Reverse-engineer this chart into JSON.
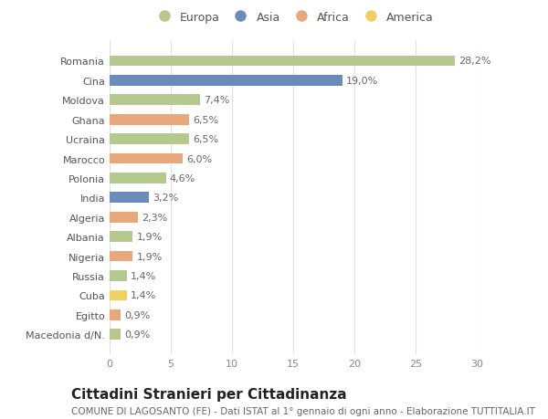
{
  "countries": [
    "Romania",
    "Cina",
    "Moldova",
    "Ghana",
    "Ucraina",
    "Marocco",
    "Polonia",
    "India",
    "Algeria",
    "Albania",
    "Nigeria",
    "Russia",
    "Cuba",
    "Egitto",
    "Macedonia d/N."
  ],
  "values": [
    28.2,
    19.0,
    7.4,
    6.5,
    6.5,
    6.0,
    4.6,
    3.2,
    2.3,
    1.9,
    1.9,
    1.4,
    1.4,
    0.9,
    0.9
  ],
  "labels": [
    "28,2%",
    "19,0%",
    "7,4%",
    "6,5%",
    "6,5%",
    "6,0%",
    "4,6%",
    "3,2%",
    "2,3%",
    "1,9%",
    "1,9%",
    "1,4%",
    "1,4%",
    "0,9%",
    "0,9%"
  ],
  "continents": [
    "Europa",
    "Asia",
    "Europa",
    "Africa",
    "Europa",
    "Africa",
    "Europa",
    "Asia",
    "Africa",
    "Europa",
    "Africa",
    "Europa",
    "America",
    "Africa",
    "Europa"
  ],
  "colors": {
    "Europa": "#b5c98e",
    "Asia": "#6b8cba",
    "Africa": "#e8a87c",
    "America": "#f0d060"
  },
  "legend_order": [
    "Europa",
    "Asia",
    "Africa",
    "America"
  ],
  "xlim": [
    0,
    30
  ],
  "xticks": [
    0,
    5,
    10,
    15,
    20,
    25,
    30
  ],
  "title": "Cittadini Stranieri per Cittadinanza",
  "subtitle": "COMUNE DI LAGOSANTO (FE) - Dati ISTAT al 1° gennaio di ogni anno - Elaborazione TUTTITALIA.IT",
  "bg_color": "#ffffff",
  "plot_bg_color": "#ffffff",
  "grid_color": "#e0e0e0",
  "bar_height": 0.55,
  "label_fontsize": 8.0,
  "tick_fontsize": 8.0,
  "title_fontsize": 11,
  "subtitle_fontsize": 7.5
}
